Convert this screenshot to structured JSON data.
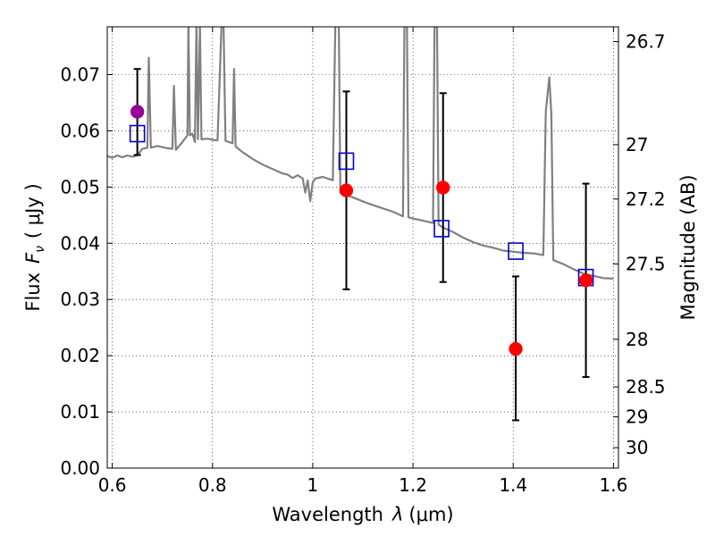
{
  "chart_data": {
    "type": "scatter",
    "xlabel_prefix": "Wavelength",
    "xlabel_symbol": "λ",
    "xlabel_units": "(μm)",
    "ylabel_prefix": "Flux",
    "ylabel_symbol": "F",
    "ylabel_subscript": "ν",
    "ylabel_units": "( μJy )",
    "y2label": "Magnitude (AB)",
    "xlim": [
      0.59,
      1.61
    ],
    "ylim": [
      0.0,
      0.0785
    ],
    "x_ticks": [
      0.6,
      0.8,
      1.0,
      1.2,
      1.4,
      1.6
    ],
    "x_tick_labels": [
      "0.6",
      "0.8",
      "1",
      "1.2",
      "1.4",
      "1.6"
    ],
    "y_ticks": [
      0.0,
      0.01,
      0.02,
      0.03,
      0.04,
      0.05,
      0.06,
      0.07
    ],
    "y_tick_labels": [
      "0.00",
      "0.01",
      "0.02",
      "0.03",
      "0.04",
      "0.05",
      "0.06",
      "0.07"
    ],
    "y2_ticks": [
      26.7,
      27,
      27.2,
      27.5,
      28,
      28.5,
      29,
      30
    ],
    "y2_tick_labels": [
      "26.7",
      "27",
      "27.2",
      "27.5",
      "28",
      "28.5",
      "29",
      "30"
    ],
    "grid": true,
    "colors": {
      "model": "#808080",
      "observed": "#ff0000",
      "highlight": "#990099",
      "synthetic": "#0000cc",
      "errorbar": "#000000"
    },
    "series": [
      {
        "kind": "model_spectrum",
        "points": [
          [
            0.59,
            0.0555
          ],
          [
            0.6,
            0.0552
          ],
          [
            0.61,
            0.0556
          ],
          [
            0.62,
            0.0553
          ],
          [
            0.63,
            0.0556
          ],
          [
            0.64,
            0.0554
          ],
          [
            0.65,
            0.0556
          ],
          [
            0.66,
            0.0568
          ],
          [
            0.67,
            0.057
          ],
          [
            0.673,
            0.073
          ],
          [
            0.677,
            0.057
          ],
          [
            0.69,
            0.0573
          ],
          [
            0.7,
            0.0571
          ],
          [
            0.71,
            0.0569
          ],
          [
            0.72,
            0.0568
          ],
          [
            0.723,
            0.068
          ],
          [
            0.727,
            0.0566
          ],
          [
            0.74,
            0.058
          ],
          [
            0.75,
            0.0592
          ],
          [
            0.752,
            0.079
          ],
          [
            0.755,
            0.0592
          ],
          [
            0.76,
            0.0595
          ],
          [
            0.765,
            0.058
          ],
          [
            0.768,
            0.079
          ],
          [
            0.771,
            0.0585
          ],
          [
            0.775,
            0.079
          ],
          [
            0.778,
            0.0585
          ],
          [
            0.79,
            0.0586
          ],
          [
            0.8,
            0.0584
          ],
          [
            0.81,
            0.0583
          ],
          [
            0.818,
            0.079
          ],
          [
            0.822,
            0.079
          ],
          [
            0.826,
            0.0582
          ],
          [
            0.84,
            0.0578
          ],
          [
            0.843,
            0.071
          ],
          [
            0.846,
            0.0572
          ],
          [
            0.86,
            0.0562
          ],
          [
            0.88,
            0.055
          ],
          [
            0.9,
            0.054
          ],
          [
            0.92,
            0.0532
          ],
          [
            0.94,
            0.0524
          ],
          [
            0.95,
            0.0522
          ],
          [
            0.96,
            0.0516
          ],
          [
            0.97,
            0.0521
          ],
          [
            0.98,
            0.0515
          ],
          [
            0.985,
            0.049
          ],
          [
            0.99,
            0.0512
          ],
          [
            0.995,
            0.0475
          ],
          [
            1.0,
            0.0508
          ],
          [
            1.005,
            0.0515
          ],
          [
            1.02,
            0.0518
          ],
          [
            1.04,
            0.0512
          ],
          [
            1.045,
            0.079
          ],
          [
            1.052,
            0.079
          ],
          [
            1.055,
            0.049
          ],
          [
            1.07,
            0.0485
          ],
          [
            1.09,
            0.0478
          ],
          [
            1.11,
            0.0471
          ],
          [
            1.13,
            0.0465
          ],
          [
            1.16,
            0.0456
          ],
          [
            1.18,
            0.0448
          ],
          [
            1.183,
            0.079
          ],
          [
            1.188,
            0.079
          ],
          [
            1.191,
            0.0446
          ],
          [
            1.2,
            0.0444
          ],
          [
            1.22,
            0.044
          ],
          [
            1.24,
            0.0436
          ],
          [
            1.243,
            0.079
          ],
          [
            1.248,
            0.079
          ],
          [
            1.251,
            0.0433
          ],
          [
            1.26,
            0.0428
          ],
          [
            1.28,
            0.042
          ],
          [
            1.3,
            0.041
          ],
          [
            1.32,
            0.0402
          ],
          [
            1.34,
            0.0396
          ],
          [
            1.36,
            0.0392
          ],
          [
            1.38,
            0.0387
          ],
          [
            1.4,
            0.0385
          ],
          [
            1.42,
            0.0383
          ],
          [
            1.44,
            0.0382
          ],
          [
            1.46,
            0.0379
          ],
          [
            1.465,
            0.0635
          ],
          [
            1.472,
            0.0695
          ],
          [
            1.476,
            0.063
          ],
          [
            1.48,
            0.037
          ],
          [
            1.5,
            0.0363
          ],
          [
            1.52,
            0.0354
          ],
          [
            1.54,
            0.0346
          ],
          [
            1.56,
            0.0342
          ],
          [
            1.58,
            0.0338
          ],
          [
            1.6,
            0.0337
          ]
        ]
      },
      {
        "kind": "observed_points",
        "x": [
          0.65,
          1.067,
          1.26,
          1.405,
          1.545
        ],
        "y": [
          0.0634,
          0.0494,
          0.0499,
          0.0212,
          0.0334
        ],
        "yerr_low": [
          0.0557,
          0.0318,
          0.0331,
          0.0085,
          0.0162
        ],
        "yerr_high": [
          0.071,
          0.067,
          0.0667,
          0.0341,
          0.0506
        ],
        "point_colors": [
          "#990099",
          "#ff0000",
          "#ff0000",
          "#ff0000",
          "#ff0000"
        ]
      },
      {
        "kind": "synthetic_photometry",
        "x": [
          0.65,
          1.067,
          1.257,
          1.405,
          1.545
        ],
        "y": [
          0.0595,
          0.0546,
          0.0426,
          0.0386,
          0.0339
        ]
      }
    ]
  }
}
